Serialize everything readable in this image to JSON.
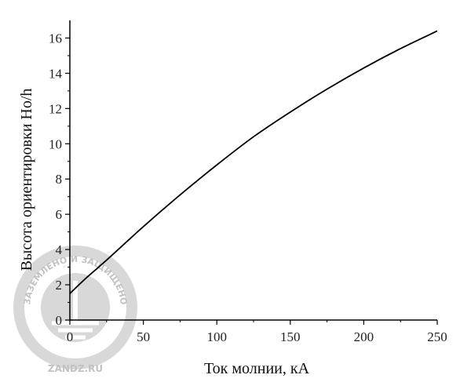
{
  "chart_data": {
    "type": "line",
    "title": "",
    "xlabel": "Ток молнии, кА",
    "ylabel": "Высота ориентировки Ho/h",
    "xlim": [
      0,
      250
    ],
    "ylim": [
      0,
      17
    ],
    "x_ticks": [
      0,
      50,
      100,
      150,
      200,
      250
    ],
    "y_ticks": [
      0,
      2,
      4,
      6,
      8,
      10,
      12,
      14,
      16
    ],
    "grid": false,
    "series": [
      {
        "name": "",
        "color": "#000000",
        "x": [
          0,
          10,
          25,
          50,
          75,
          100,
          125,
          150,
          175,
          200,
          225,
          250
        ],
        "y": [
          1.5,
          2.3,
          3.4,
          5.3,
          7.1,
          8.8,
          10.4,
          11.8,
          13.1,
          14.3,
          15.4,
          16.4
        ]
      }
    ]
  },
  "watermark": {
    "arc_text": "ЗАЗЕМЛЕНО И ЗАЩИЩЕНО",
    "bottom_text": "ZANDZ.RU",
    "icon": "ground-symbol-icon",
    "color": "#c8c8c8"
  }
}
